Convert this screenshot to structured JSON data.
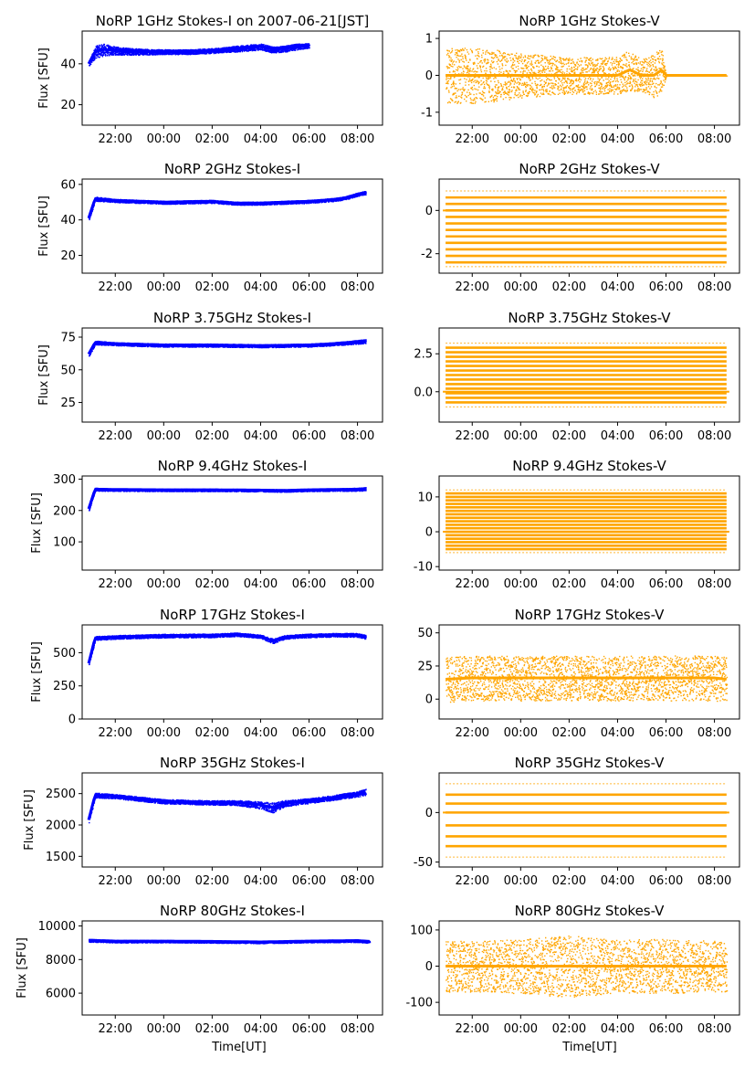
{
  "figure": {
    "xlabel_bottom": "Time[UT]"
  },
  "x_ticks": [
    "22:00",
    "00:00",
    "02:00",
    "04:00",
    "06:00",
    "08:00"
  ],
  "chart_data": [
    {
      "type": "scatter",
      "title": "NoRP 1GHz Stokes-I on 2007-06-21[JST]",
      "ylabel": "Flux [SFU]",
      "color": "#0000ff",
      "yticks": [
        20,
        40
      ],
      "ylim": [
        10,
        56
      ],
      "xlim": [
        "20:38",
        "09:02"
      ],
      "series": [
        {
          "x": [
            "20:54",
            "21:10",
            "21:30",
            "22:00",
            "23:00",
            "00:00",
            "01:00",
            "02:00",
            "02:30",
            "03:00",
            "03:30",
            "04:00",
            "04:30",
            "05:00",
            "05:30",
            "06:00"
          ],
          "y": [
            40,
            46,
            47,
            46.5,
            46,
            46,
            46,
            46.5,
            47,
            47.5,
            48,
            48.5,
            47,
            47.5,
            48.5,
            49
          ],
          "spread": [
            1.5,
            3,
            3,
            2,
            1.5,
            1.2,
            1.2,
            1.2,
            1.2,
            1.5,
            1.5,
            1.5,
            1.5,
            1.5,
            1.5,
            1.2
          ]
        }
      ]
    },
    {
      "type": "scatter",
      "title": "NoRP 1GHz Stokes-V",
      "ylabel": "",
      "color": "#ffa500",
      "yticks": [
        -1,
        0,
        1
      ],
      "ylim": [
        -1.35,
        1.2
      ],
      "xlim": [
        "20:38",
        "09:02"
      ],
      "series": [
        {
          "x": [
            "20:54",
            "22:00",
            "23:00",
            "00:00",
            "01:00",
            "02:00",
            "03:00",
            "04:00",
            "04:30",
            "05:00",
            "05:30",
            "05:50",
            "06:00",
            "07:00",
            "08:30"
          ],
          "y": [
            0,
            0,
            0,
            0,
            0,
            0,
            0,
            0,
            0.15,
            0,
            0,
            0.15,
            0,
            0,
            0
          ],
          "spread": [
            0.75,
            0.75,
            0.7,
            0.6,
            0.55,
            0.5,
            0.5,
            0.5,
            0.55,
            0.45,
            0.6,
            0.6,
            0,
            0,
            0
          ]
        }
      ]
    },
    {
      "type": "scatter",
      "title": "NoRP 2GHz Stokes-I",
      "ylabel": "Flux [SFU]",
      "color": "#0000ff",
      "yticks": [
        20,
        40,
        60
      ],
      "ylim": [
        10,
        63
      ],
      "xlim": [
        "20:38",
        "09:02"
      ],
      "series": [
        {
          "x": [
            "20:54",
            "21:10",
            "22:00",
            "00:00",
            "02:00",
            "03:00",
            "04:00",
            "05:00",
            "06:00",
            "07:00",
            "07:30",
            "08:00",
            "08:20"
          ],
          "y": [
            41,
            52,
            51,
            50,
            50.5,
            49.5,
            49.5,
            50,
            50.5,
            51.5,
            52.5,
            54.5,
            55.5
          ],
          "spread": [
            1.2,
            1.2,
            0.9,
            0.9,
            0.9,
            0.9,
            0.9,
            0.9,
            0.9,
            0.9,
            0.9,
            1,
            1
          ]
        }
      ]
    },
    {
      "type": "scatter",
      "title": "NoRP 2GHz Stokes-V",
      "ylabel": "",
      "color": "#ffa500",
      "yticks": [
        -2,
        0
      ],
      "ylim": [
        -2.9,
        1.45
      ],
      "xlim": [
        "20:38",
        "09:02"
      ],
      "levels": [
        0.9,
        0.6,
        0.3,
        0,
        -0.3,
        -0.6,
        -0.9,
        -1.2,
        -1.5,
        -1.8,
        -2.1,
        -2.4,
        -2.6
      ],
      "series": [
        {
          "x": [
            "20:54",
            "08:30"
          ],
          "y": [
            0,
            0
          ],
          "spread": [
            0,
            0
          ]
        }
      ]
    },
    {
      "type": "scatter",
      "title": "NoRP 3.75GHz Stokes-I",
      "ylabel": "Flux [SFU]",
      "color": "#0000ff",
      "yticks": [
        25,
        50,
        75
      ],
      "ylim": [
        10,
        82
      ],
      "xlim": [
        "20:38",
        "09:02"
      ],
      "series": [
        {
          "x": [
            "20:54",
            "21:10",
            "22:00",
            "00:00",
            "02:00",
            "04:00",
            "06:00",
            "07:00",
            "08:00",
            "08:20"
          ],
          "y": [
            62,
            71,
            70,
            69,
            69,
            68.5,
            69,
            70,
            71.5,
            72
          ],
          "spread": [
            1.5,
            1.5,
            1.2,
            1.2,
            1.2,
            1.2,
            1.2,
            1.2,
            1.5,
            1.5
          ]
        }
      ]
    },
    {
      "type": "scatter",
      "title": "NoRP 3.75GHz Stokes-V",
      "ylabel": "",
      "color": "#ffa500",
      "yticks": [
        0.0,
        2.5
      ],
      "ylim": [
        -2.0,
        4.2
      ],
      "xlim": [
        "20:38",
        "09:02"
      ],
      "levels": [
        3.2,
        2.9,
        2.6,
        2.3,
        2.0,
        1.7,
        1.4,
        1.1,
        0.8,
        0.5,
        0.2,
        -0.1,
        -0.4,
        -0.7,
        -1.0
      ],
      "series": [
        {
          "x": [
            "20:54",
            "08:30"
          ],
          "y": [
            0,
            0
          ],
          "spread": [
            0,
            0
          ]
        }
      ]
    },
    {
      "type": "scatter",
      "title": "NoRP 9.4GHz Stokes-I",
      "ylabel": "Flux [SFU]",
      "color": "#0000ff",
      "yticks": [
        100,
        200,
        300
      ],
      "ylim": [
        10,
        310
      ],
      "xlim": [
        "20:38",
        "09:02"
      ],
      "series": [
        {
          "x": [
            "20:54",
            "21:10",
            "22:00",
            "00:00",
            "02:00",
            "04:00",
            "05:00",
            "06:00",
            "07:00",
            "08:00",
            "08:20"
          ],
          "y": [
            205,
            268,
            267,
            266,
            266,
            265,
            264,
            266,
            267,
            268,
            270
          ],
          "spread": [
            5,
            5,
            4,
            4,
            4,
            4,
            4,
            4,
            4,
            5,
            5
          ]
        }
      ]
    },
    {
      "type": "scatter",
      "title": "NoRP 9.4GHz Stokes-V",
      "ylabel": "",
      "color": "#ffa500",
      "yticks": [
        -10,
        0,
        10
      ],
      "ylim": [
        -11,
        16
      ],
      "xlim": [
        "20:38",
        "09:02"
      ],
      "levels": [
        12,
        11,
        10,
        9,
        8,
        7,
        6,
        5,
        4,
        3,
        2,
        1,
        0,
        -1,
        -2,
        -3,
        -4,
        -5,
        -6
      ],
      "series": [
        {
          "x": [
            "20:54",
            "08:30"
          ],
          "y": [
            0,
            0
          ],
          "spread": [
            0,
            0
          ]
        }
      ]
    },
    {
      "type": "scatter",
      "title": "NoRP 17GHz Stokes-I",
      "ylabel": "Flux [SFU]",
      "color": "#0000ff",
      "yticks": [
        0,
        250,
        500
      ],
      "ylim": [
        0,
        710
      ],
      "xlim": [
        "20:38",
        "09:02"
      ],
      "series": [
        {
          "x": [
            "20:54",
            "21:10",
            "22:00",
            "00:00",
            "02:00",
            "03:00",
            "04:00",
            "04:30",
            "05:00",
            "06:00",
            "07:00",
            "08:00",
            "08:20"
          ],
          "y": [
            420,
            612,
            620,
            630,
            632,
            640,
            625,
            590,
            620,
            632,
            636,
            636,
            620
          ],
          "spread": [
            12,
            15,
            14,
            14,
            14,
            14,
            14,
            18,
            14,
            14,
            14,
            15,
            15
          ]
        }
      ]
    },
    {
      "type": "scatter",
      "title": "NoRP 17GHz Stokes-V",
      "ylabel": "",
      "color": "#ffa500",
      "yticks": [
        0,
        25,
        50
      ],
      "ylim": [
        -15,
        56
      ],
      "xlim": [
        "20:38",
        "09:02"
      ],
      "series": [
        {
          "x": [
            "20:54",
            "22:00",
            "00:00",
            "02:00",
            "04:00",
            "06:00",
            "08:00",
            "08:30"
          ],
          "y": [
            15,
            16,
            16,
            16,
            16,
            16,
            16,
            15
          ],
          "spread": [
            17,
            17,
            17,
            17,
            17,
            17,
            17,
            17
          ]
        }
      ]
    },
    {
      "type": "scatter",
      "title": "NoRP 35GHz Stokes-I",
      "ylabel": "Flux [SFU]",
      "color": "#0000ff",
      "yticks": [
        1500,
        2000,
        2500
      ],
      "ylim": [
        1330,
        2830
      ],
      "xlim": [
        "20:38",
        "09:02"
      ],
      "series": [
        {
          "x": [
            "20:54",
            "21:10",
            "22:00",
            "23:00",
            "00:00",
            "01:00",
            "02:00",
            "03:00",
            "04:00",
            "04:30",
            "05:00",
            "06:00",
            "07:00",
            "08:00",
            "08:20"
          ],
          "y": [
            2080,
            2480,
            2460,
            2420,
            2380,
            2370,
            2360,
            2360,
            2320,
            2280,
            2350,
            2390,
            2440,
            2500,
            2530
          ],
          "spread": [
            40,
            40,
            35,
            35,
            35,
            35,
            35,
            40,
            60,
            80,
            50,
            40,
            40,
            45,
            50
          ]
        }
      ]
    },
    {
      "type": "scatter",
      "title": "NoRP 35GHz Stokes-V",
      "ylabel": "",
      "color": "#ffa500",
      "yticks": [
        -50,
        0
      ],
      "ylim": [
        -55,
        40
      ],
      "xlim": [
        "20:38",
        "09:02"
      ],
      "levels": [
        29,
        18,
        9,
        0,
        -13,
        -24,
        -34,
        -45
      ],
      "series": [
        {
          "x": [
            "20:54",
            "08:30"
          ],
          "y": [
            0,
            0
          ],
          "spread": [
            0,
            0
          ]
        }
      ]
    },
    {
      "type": "scatter",
      "title": "NoRP 80GHz Stokes-I",
      "ylabel": "Flux [SFU]",
      "color": "#0000ff",
      "yticks": [
        6000,
        8000,
        10000
      ],
      "ylim": [
        4700,
        10300
      ],
      "xlim": [
        "20:38",
        "09:02"
      ],
      "series": [
        {
          "x": [
            "20:54",
            "22:00",
            "00:00",
            "02:00",
            "04:00",
            "06:00",
            "08:00",
            "08:30"
          ],
          "y": [
            9150,
            9100,
            9100,
            9080,
            9050,
            9100,
            9130,
            9080
          ],
          "spread": [
            80,
            80,
            70,
            70,
            70,
            70,
            80,
            80
          ]
        }
      ]
    },
    {
      "type": "scatter",
      "title": "NoRP 80GHz Stokes-V",
      "ylabel": "",
      "color": "#ffa500",
      "yticks": [
        -100,
        0,
        100
      ],
      "ylim": [
        -135,
        125
      ],
      "xlim": [
        "20:38",
        "09:02"
      ],
      "series": [
        {
          "x": [
            "20:54",
            "22:00",
            "00:00",
            "02:00",
            "03:00",
            "04:00",
            "06:00",
            "08:00",
            "08:30"
          ],
          "y": [
            0,
            0,
            0,
            0,
            0,
            0,
            0,
            0,
            0
          ],
          "spread": [
            70,
            70,
            75,
            85,
            80,
            75,
            75,
            70,
            70
          ]
        }
      ]
    }
  ]
}
